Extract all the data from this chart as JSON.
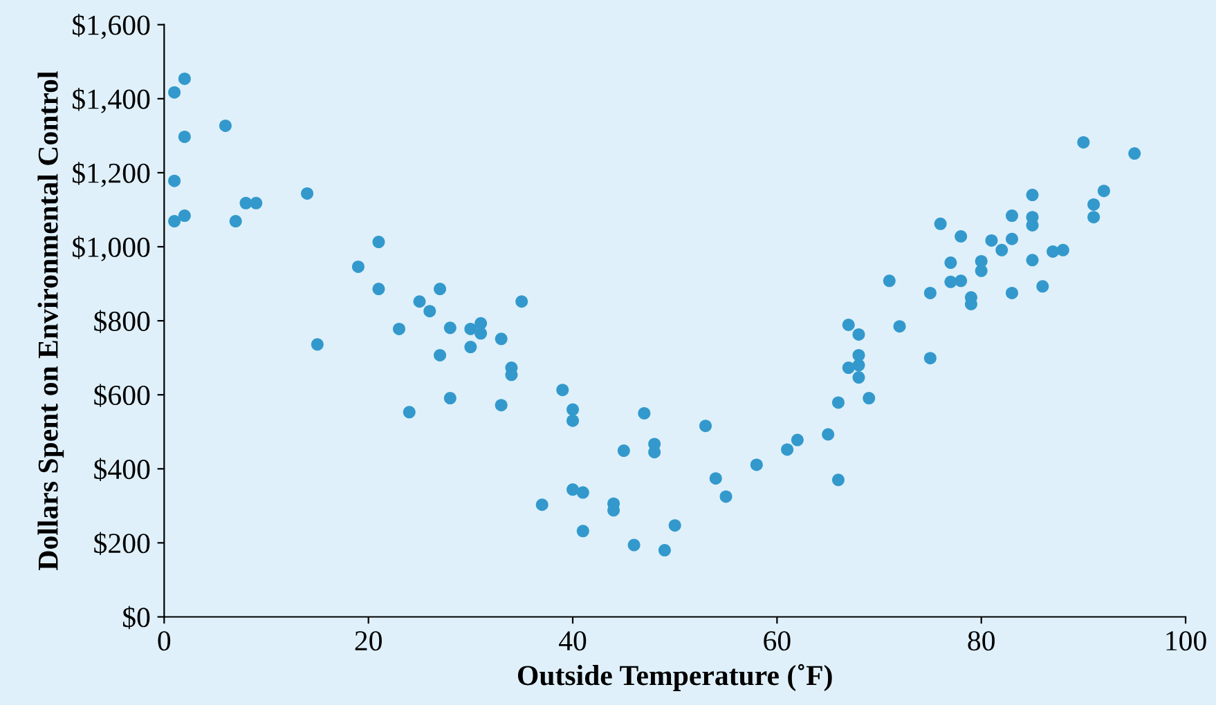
{
  "chart_data": {
    "type": "scatter",
    "xlabel": "Outside Temperature (˚F)",
    "ylabel": "Dollars Spent on Environmental Control",
    "series": [
      {
        "color": "#3399cc",
        "x": [
          1,
          2,
          2,
          1,
          1,
          2,
          6,
          7,
          8,
          9,
          14,
          15,
          19,
          21,
          21,
          23,
          24,
          25,
          26,
          27,
          27,
          28,
          28,
          30,
          31,
          31,
          30,
          33,
          33,
          34,
          34,
          35,
          37,
          39,
          40,
          40,
          40,
          41,
          41,
          44,
          44,
          45,
          46,
          47,
          48,
          48,
          49,
          50,
          53,
          54,
          55,
          58,
          61,
          62,
          65,
          66,
          66,
          67,
          67,
          68,
          68,
          68,
          68,
          69,
          71,
          72,
          75,
          75,
          76,
          77,
          77,
          78,
          78,
          79,
          79,
          80,
          80,
          81,
          82,
          83,
          83,
          83,
          85,
          85,
          85,
          85,
          86,
          87,
          88,
          90,
          91,
          91,
          92,
          95
        ],
        "values": [
          1417,
          1454,
          1297,
          1178,
          1069,
          1084,
          1327,
          1069,
          1118,
          1118,
          1144,
          736,
          946,
          1013,
          886,
          778,
          553,
          852,
          826,
          886,
          707,
          781,
          591,
          778,
          793,
          766,
          729,
          751,
          572,
          673,
          654,
          852,
          303,
          613,
          560,
          530,
          344,
          336,
          232,
          306,
          288,
          449,
          194,
          550,
          467,
          445,
          180,
          247,
          516,
          374,
          325,
          411,
          452,
          478,
          493,
          579,
          370,
          789,
          673,
          763,
          707,
          680,
          647,
          591,
          908,
          785,
          699,
          875,
          1062,
          957,
          905,
          1028,
          908,
          863,
          845,
          961,
          935,
          1017,
          991,
          1084,
          1021,
          875,
          1140,
          1080,
          1058,
          964,
          893,
          987,
          991,
          1282,
          1114,
          1080,
          1151,
          1252
        ]
      }
    ],
    "xlim": [
      0,
      100
    ],
    "xticks": [
      0,
      20,
      40,
      60,
      80,
      100
    ],
    "ylim": [
      0,
      1600
    ],
    "yticks": [
      {
        "value": 0,
        "label": "$0"
      },
      {
        "value": 200,
        "label": "$200"
      },
      {
        "value": 400,
        "label": "$400"
      },
      {
        "value": 600,
        "label": "$600"
      },
      {
        "value": 800,
        "label": "$800"
      },
      {
        "value": 1000,
        "label": "$1,000"
      },
      {
        "value": 1200,
        "label": "$1,200"
      },
      {
        "value": 1400,
        "label": "$1,400"
      },
      {
        "value": 1600,
        "label": "$1,600"
      }
    ],
    "marker": "circle",
    "grid": false,
    "legend": false
  }
}
